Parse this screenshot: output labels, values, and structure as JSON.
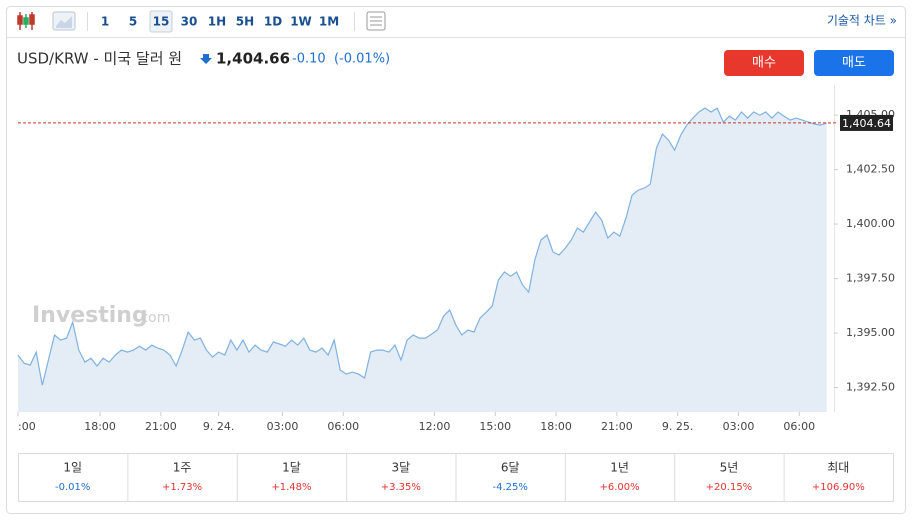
{
  "toolbar": {
    "intervals": [
      "1",
      "5",
      "15",
      "30",
      "1H",
      "5H",
      "1D",
      "1W",
      "1M"
    ],
    "selected_interval_index": 2,
    "link": "기술적 차트 »"
  },
  "header": {
    "symbol": "USD/KRW - 미국 달러 원",
    "price": "1,404.66",
    "change": "-0.10",
    "change_pct": "(-0.01%)"
  },
  "buttons": {
    "buy": "매수",
    "sell": "매도"
  },
  "chart_data": {
    "type": "line",
    "watermark": "Investing",
    "watermark_suffix": ".com",
    "color": "#7fb2e0",
    "fill": "#e4ecf6",
    "x": [
      0,
      1,
      2,
      3,
      4,
      5,
      6,
      7,
      8,
      9,
      10,
      11,
      12,
      13,
      14,
      15,
      16,
      17,
      18,
      19,
      20,
      21,
      22,
      23,
      24,
      25,
      26,
      27,
      28,
      29,
      30,
      31,
      32,
      33,
      34,
      35,
      36,
      37,
      38,
      39,
      40,
      41,
      42,
      43,
      44,
      45,
      46,
      47,
      48,
      49,
      50,
      51,
      52,
      53,
      54,
      55,
      56,
      57,
      58,
      59,
      60,
      61,
      62,
      63,
      64,
      65,
      66,
      67,
      68,
      69,
      70,
      71,
      72,
      73,
      74,
      75,
      76,
      77,
      78,
      79,
      80,
      81,
      82,
      83,
      84,
      85,
      86,
      87,
      88,
      89,
      90,
      91,
      92,
      93,
      94,
      95,
      96,
      97,
      98,
      99,
      100,
      101,
      102,
      103,
      104,
      105,
      106,
      107,
      108,
      109,
      110,
      111,
      112,
      113,
      114,
      115,
      116,
      117,
      118,
      119,
      120,
      121,
      122,
      123,
      124,
      125,
      126,
      127,
      128,
      129,
      130,
      131,
      132,
      133
    ],
    "values": [
      1393.99,
      1393.62,
      1393.53,
      1394.13,
      1392.61,
      1393.76,
      1394.91,
      1394.68,
      1394.77,
      1395.5,
      1394.22,
      1393.67,
      1393.85,
      1393.49,
      1393.85,
      1393.67,
      1393.99,
      1394.22,
      1394.13,
      1394.22,
      1394.4,
      1394.22,
      1394.45,
      1394.31,
      1394.22,
      1393.99,
      1393.49,
      1394.22,
      1395.05,
      1394.68,
      1394.77,
      1394.22,
      1393.9,
      1394.13,
      1393.99,
      1394.68,
      1394.22,
      1394.68,
      1394.13,
      1394.45,
      1394.22,
      1394.13,
      1394.59,
      1394.5,
      1394.4,
      1394.68,
      1394.45,
      1394.77,
      1394.22,
      1394.13,
      1394.31,
      1393.99,
      1394.68,
      1393.3,
      1393.12,
      1393.21,
      1393.12,
      1392.94,
      1394.13,
      1394.22,
      1394.22,
      1394.13,
      1394.45,
      1393.76,
      1394.68,
      1394.91,
      1394.77,
      1394.77,
      1394.95,
      1395.14,
      1395.78,
      1396.06,
      1395.37,
      1394.91,
      1395.14,
      1395.05,
      1395.69,
      1395.96,
      1396.24,
      1397.43,
      1397.8,
      1397.61,
      1397.8,
      1397.2,
      1396.88,
      1398.35,
      1399.27,
      1399.5,
      1398.72,
      1398.58,
      1398.9,
      1399.27,
      1399.82,
      1399.63,
      1400.09,
      1400.55,
      1400.18,
      1399.36,
      1399.63,
      1399.45,
      1400.28,
      1401.33,
      1401.56,
      1401.65,
      1401.83,
      1403.49,
      1404.13,
      1403.85,
      1403.39,
      1404.08,
      1404.54,
      1404.86,
      1405.14,
      1405.32,
      1405.14,
      1405.32,
      1404.68,
      1404.95,
      1404.77,
      1405.14,
      1404.86,
      1405.14,
      1405.0,
      1405.14,
      1404.86,
      1405.14,
      1404.95,
      1404.77,
      1404.86,
      1404.77,
      1404.68,
      1404.59,
      1404.54,
      1404.64
    ],
    "xlim": [
      0,
      134
    ],
    "xticks": [
      {
        "value": 0,
        "label": ":00"
      },
      {
        "value": 13.5,
        "label": "18:00"
      },
      {
        "value": 23.5,
        "label": "21:00"
      },
      {
        "value": 33,
        "label": "9. 24."
      },
      {
        "value": 43.5,
        "label": "03:00"
      },
      {
        "value": 53.5,
        "label": "06:00"
      },
      {
        "value": 68.5,
        "label": "12:00"
      },
      {
        "value": 78.5,
        "label": "15:00"
      },
      {
        "value": 88.5,
        "label": "18:00"
      },
      {
        "value": 98.5,
        "label": "21:00"
      },
      {
        "value": 108.5,
        "label": "9. 25."
      },
      {
        "value": 118.5,
        "label": "03:00"
      },
      {
        "value": 128.5,
        "label": "06:00"
      }
    ],
    "ylim": [
      1391.38,
      1406.38
    ],
    "yticks": [
      {
        "value": 1392.5,
        "label": "1,392.50"
      },
      {
        "value": 1395,
        "label": "1,395.00"
      },
      {
        "value": 1397.5,
        "label": "1,397.50"
      },
      {
        "value": 1400,
        "label": "1,400.00"
      },
      {
        "value": 1402.5,
        "label": "1,402.50"
      },
      {
        "value": 1405,
        "label": "1,405.00"
      }
    ],
    "price_line": {
      "value": 1404.64,
      "label": "1,404.64"
    }
  },
  "performance": [
    {
      "period": "1일",
      "change": "-0.01%"
    },
    {
      "period": "1주",
      "change": "+1.73%"
    },
    {
      "period": "1달",
      "change": "+1.48%"
    },
    {
      "period": "3달",
      "change": "+3.35%"
    },
    {
      "period": "6달",
      "change": "-4.25%"
    },
    {
      "period": "1년",
      "change": "+6.00%"
    },
    {
      "period": "5년",
      "change": "+20.15%"
    },
    {
      "period": "최대",
      "change": "+106.90%"
    }
  ]
}
